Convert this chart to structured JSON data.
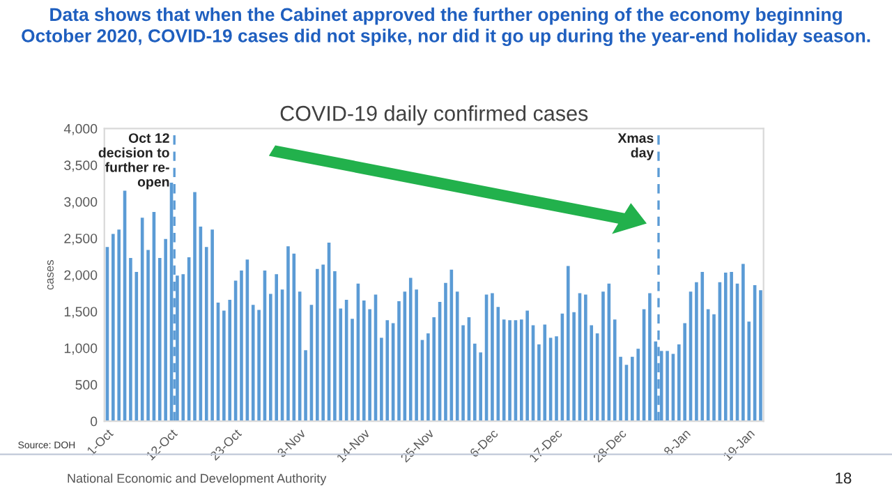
{
  "chart_data": {
    "type": "bar",
    "title": "COVID-19 daily confirmed cases",
    "subtitle": "Data shows that when the Cabinet approved the further opening of the economy beginning\nOctober 2020, COVID-19 cases did not spike, nor did it go up during the year-end holiday season.",
    "ylabel": "cases",
    "x": [
      "2020-10-01",
      "2020-10-02",
      "2020-10-03",
      "2020-10-04",
      "2020-10-05",
      "2020-10-06",
      "2020-10-07",
      "2020-10-08",
      "2020-10-09",
      "2020-10-10",
      "2020-10-11",
      "2020-10-12",
      "2020-10-13",
      "2020-10-14",
      "2020-10-15",
      "2020-10-16",
      "2020-10-17",
      "2020-10-18",
      "2020-10-19",
      "2020-10-20",
      "2020-10-21",
      "2020-10-22",
      "2020-10-23",
      "2020-10-24",
      "2020-10-25",
      "2020-10-26",
      "2020-10-27",
      "2020-10-28",
      "2020-10-29",
      "2020-10-30",
      "2020-10-31",
      "2020-11-01",
      "2020-11-02",
      "2020-11-03",
      "2020-11-04",
      "2020-11-05",
      "2020-11-06",
      "2020-11-07",
      "2020-11-08",
      "2020-11-09",
      "2020-11-10",
      "2020-11-11",
      "2020-11-12",
      "2020-11-13",
      "2020-11-14",
      "2020-11-15",
      "2020-11-16",
      "2020-11-17",
      "2020-11-18",
      "2020-11-19",
      "2020-11-20",
      "2020-11-21",
      "2020-11-22",
      "2020-11-23",
      "2020-11-24",
      "2020-11-25",
      "2020-11-26",
      "2020-11-27",
      "2020-11-28",
      "2020-11-29",
      "2020-11-30",
      "2020-12-01",
      "2020-12-02",
      "2020-12-03",
      "2020-12-04",
      "2020-12-05",
      "2020-12-06",
      "2020-12-07",
      "2020-12-08",
      "2020-12-09",
      "2020-12-10",
      "2020-12-11",
      "2020-12-12",
      "2020-12-13",
      "2020-12-14",
      "2020-12-15",
      "2020-12-16",
      "2020-12-17",
      "2020-12-18",
      "2020-12-19",
      "2020-12-20",
      "2020-12-21",
      "2020-12-22",
      "2020-12-23",
      "2020-12-24",
      "2020-12-25",
      "2020-12-26",
      "2020-12-27",
      "2020-12-28",
      "2020-12-29",
      "2020-12-30",
      "2020-12-31",
      "2021-01-01",
      "2021-01-02",
      "2021-01-03",
      "2021-01-04",
      "2021-01-05",
      "2021-01-06",
      "2021-01-07",
      "2021-01-08",
      "2021-01-09",
      "2021-01-10",
      "2021-01-11",
      "2021-01-12",
      "2021-01-13",
      "2021-01-14",
      "2021-01-15",
      "2021-01-16",
      "2021-01-17",
      "2021-01-18",
      "2021-01-19",
      "2021-01-20",
      "2021-01-21"
    ],
    "values": [
      2380,
      2560,
      2620,
      3150,
      2230,
      2040,
      2780,
      2340,
      2860,
      2230,
      2490,
      3260,
      1990,
      2010,
      2240,
      3130,
      2660,
      2380,
      2620,
      1620,
      1510,
      1660,
      1920,
      2060,
      2210,
      1590,
      1520,
      2060,
      1740,
      2010,
      1800,
      2390,
      2290,
      1770,
      970,
      1590,
      2080,
      2140,
      2440,
      2050,
      1540,
      1660,
      1400,
      1880,
      1650,
      1530,
      1730,
      1140,
      1380,
      1340,
      1640,
      1770,
      1960,
      1800,
      1110,
      1200,
      1420,
      1630,
      1890,
      2070,
      1770,
      1310,
      1420,
      1060,
      940,
      1730,
      1750,
      1560,
      1390,
      1380,
      1380,
      1390,
      1510,
      1310,
      1050,
      1320,
      1140,
      1160,
      1470,
      2120,
      1490,
      1750,
      1730,
      1310,
      1200,
      1770,
      1880,
      1390,
      880,
      770,
      880,
      990,
      1530,
      1750,
      1090,
      960,
      960,
      920,
      1050,
      1340,
      1770,
      1900,
      2040,
      1530,
      1460,
      1900,
      2030,
      2040,
      1880,
      2150,
      1360,
      1860,
      1790
    ],
    "color": "#5b9bd5",
    "xlim": [
      "2020-09-30T12:00",
      "2021-01-21T12:00"
    ],
    "xticks": [
      {
        "value": "2020-10-01",
        "label": "1-Oct"
      },
      {
        "value": "2020-10-12",
        "label": "12-Oct"
      },
      {
        "value": "2020-10-23",
        "label": "23-Oct"
      },
      {
        "value": "2020-11-03",
        "label": "3-Nov"
      },
      {
        "value": "2020-11-14",
        "label": "14-Nov"
      },
      {
        "value": "2020-11-25",
        "label": "25-Nov"
      },
      {
        "value": "2020-12-06",
        "label": "6-Dec"
      },
      {
        "value": "2020-12-17",
        "label": "17-Dec"
      },
      {
        "value": "2020-12-28",
        "label": "28-Dec"
      },
      {
        "value": "2021-01-08",
        "label": "8-Jan"
      },
      {
        "value": "2021-01-19",
        "label": "19-Jan"
      }
    ],
    "ylim": [
      0,
      4000
    ],
    "yticks": [
      0,
      {
        "value": 500,
        "label": "500"
      },
      {
        "value": 1000,
        "label": "1,000"
      },
      {
        "value": 1500,
        "label": "1,500"
      },
      {
        "value": 2000,
        "label": "2,000"
      },
      {
        "value": 2500,
        "label": "2,500"
      },
      {
        "value": 3000,
        "label": "3,000"
      },
      {
        "value": 3500,
        "label": "3,500"
      },
      {
        "value": 4000,
        "label": "4,000"
      }
    ],
    "ref_lines": [
      {
        "axis": "x",
        "value": "2020-10-12T12:00",
        "label": "Oct 12\ndecision to\nfurther re-\nopen",
        "color": "#5b9bd5",
        "line_style": "dashed"
      },
      {
        "axis": "x",
        "value": "2021-01-03T12:00",
        "label": "Xmas\nday",
        "color": "#5b9bd5",
        "line_style": "dashed"
      }
    ],
    "grid": false,
    "legend": false,
    "annotations": [
      "Source: DOH",
      "National Economic and Development Authority",
      "18"
    ]
  }
}
